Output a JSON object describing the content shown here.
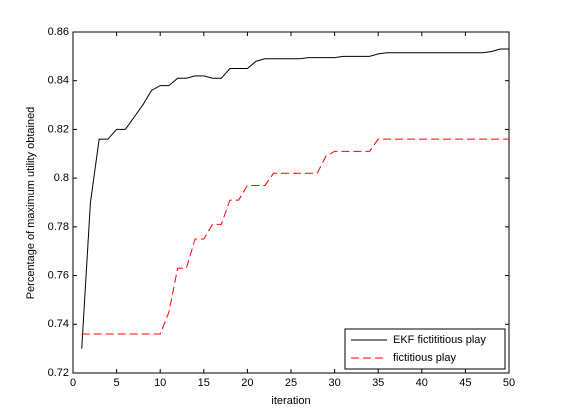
{
  "chart_data": {
    "type": "line",
    "xlabel": "iteration",
    "ylabel": "Percentage of maximum utility obtained",
    "x": [
      1,
      2,
      3,
      4,
      5,
      6,
      7,
      8,
      9,
      10,
      11,
      12,
      13,
      14,
      15,
      16,
      17,
      18,
      19,
      20,
      21,
      22,
      23,
      24,
      25,
      26,
      27,
      28,
      29,
      30,
      31,
      32,
      33,
      34,
      35,
      36,
      37,
      38,
      39,
      40,
      41,
      42,
      43,
      44,
      45,
      46,
      47,
      48,
      49,
      50
    ],
    "series": [
      {
        "name": "EKF fictititious play",
        "color": "#000000",
        "dash": "solid",
        "values": [
          0.73,
          0.79,
          0.816,
          0.816,
          0.82,
          0.82,
          0.825,
          0.83,
          0.836,
          0.838,
          0.838,
          0.841,
          0.841,
          0.842,
          0.842,
          0.841,
          0.841,
          0.845,
          0.845,
          0.845,
          0.848,
          0.849,
          0.849,
          0.849,
          0.849,
          0.849,
          0.8495,
          0.8495,
          0.8495,
          0.8495,
          0.85,
          0.85,
          0.85,
          0.85,
          0.851,
          0.8515,
          0.8515,
          0.8515,
          0.8515,
          0.8515,
          0.8515,
          0.8515,
          0.8515,
          0.8515,
          0.8515,
          0.8515,
          0.8515,
          0.852,
          0.853,
          0.853
        ]
      },
      {
        "name": "fictitious play",
        "color": "#ff0000",
        "dash": "dashed",
        "values": [
          0.736,
          0.736,
          0.736,
          0.736,
          0.736,
          0.736,
          0.736,
          0.736,
          0.736,
          0.736,
          0.745,
          0.763,
          0.763,
          0.775,
          0.775,
          0.781,
          0.781,
          0.791,
          0.791,
          0.797,
          0.797,
          0.797,
          0.802,
          0.802,
          0.802,
          0.802,
          0.802,
          0.802,
          0.809,
          0.811,
          0.811,
          0.811,
          0.811,
          0.811,
          0.816,
          0.816,
          0.816,
          0.816,
          0.816,
          0.816,
          0.816,
          0.816,
          0.816,
          0.816,
          0.816,
          0.816,
          0.816,
          0.816,
          0.816,
          0.816
        ]
      }
    ],
    "xlim": [
      0,
      50
    ],
    "xticks": [
      0,
      5,
      10,
      15,
      20,
      25,
      30,
      35,
      40,
      45,
      50
    ],
    "ylim": [
      0.72,
      0.86
    ],
    "yticks": [
      0.72,
      0.74,
      0.76,
      0.78,
      0.8,
      0.82,
      0.84,
      0.86
    ],
    "legend": "lower right",
    "grid": false
  }
}
